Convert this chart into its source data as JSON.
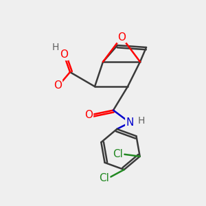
{
  "bg_color": "#efefef",
  "bond_color": "#3a3a3a",
  "bond_width": 1.8,
  "atom_colors": {
    "O": "#ff0000",
    "N": "#0000cc",
    "Cl": "#228822",
    "H": "#606060",
    "C": "#3a3a3a"
  },
  "font_size_atom": 11,
  "title": ""
}
